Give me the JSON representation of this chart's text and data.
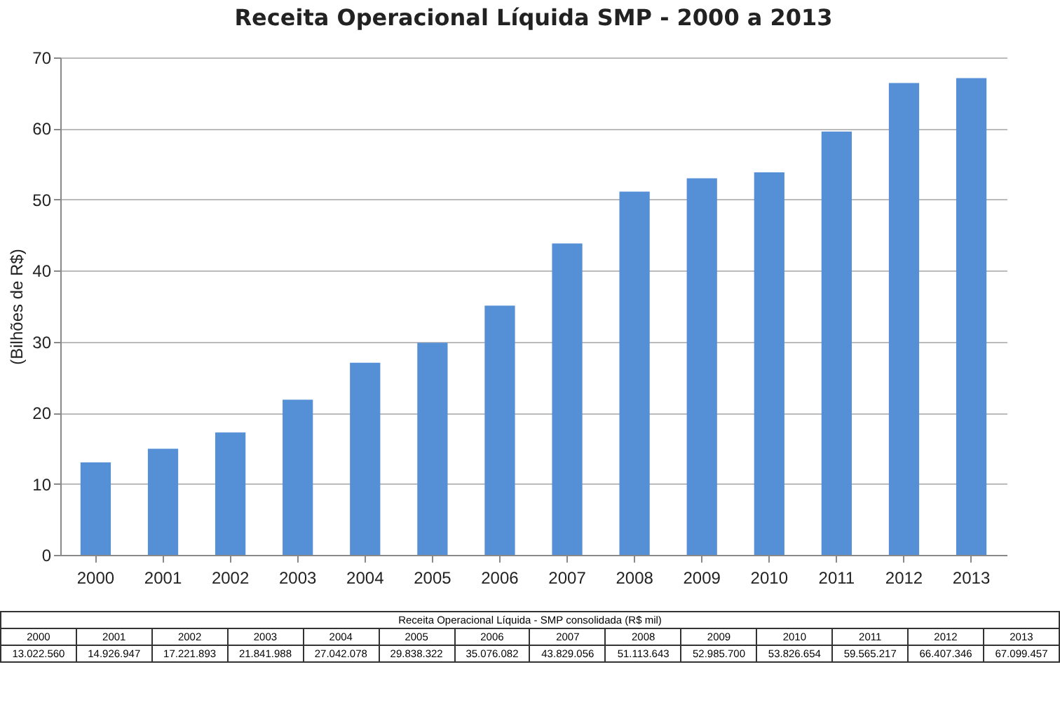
{
  "chart_data": {
    "type": "bar",
    "title": "Receita Operacional Líquida SMP - 2000 a 2013",
    "ylabel": "(Bilhões de R$)",
    "categories": [
      "2000",
      "2001",
      "2002",
      "2003",
      "2004",
      "2005",
      "2006",
      "2007",
      "2008",
      "2009",
      "2010",
      "2011",
      "2012",
      "2013"
    ],
    "values": [
      13.02,
      14.93,
      17.22,
      21.84,
      27.04,
      29.84,
      35.08,
      43.83,
      51.11,
      52.99,
      53.83,
      59.57,
      66.41,
      67.1
    ],
    "color": "#5590d7",
    "ylim": [
      0,
      70
    ],
    "yticks": [
      0,
      10,
      20,
      30,
      40,
      50,
      60,
      70
    ],
    "grid": "y",
    "annotations": [
      "Receita Operacional Líquida - SMP consolidada (R$ mil)",
      "13.022.560",
      "14.926.947",
      "17.221.893",
      "21.841.988",
      "27.042.078",
      "29.838.322",
      "35.076.082",
      "43.829.056",
      "51.113.643",
      "52.985.700",
      "53.826.654",
      "59.565.217",
      "66.407.346",
      "67.099.457"
    ]
  }
}
